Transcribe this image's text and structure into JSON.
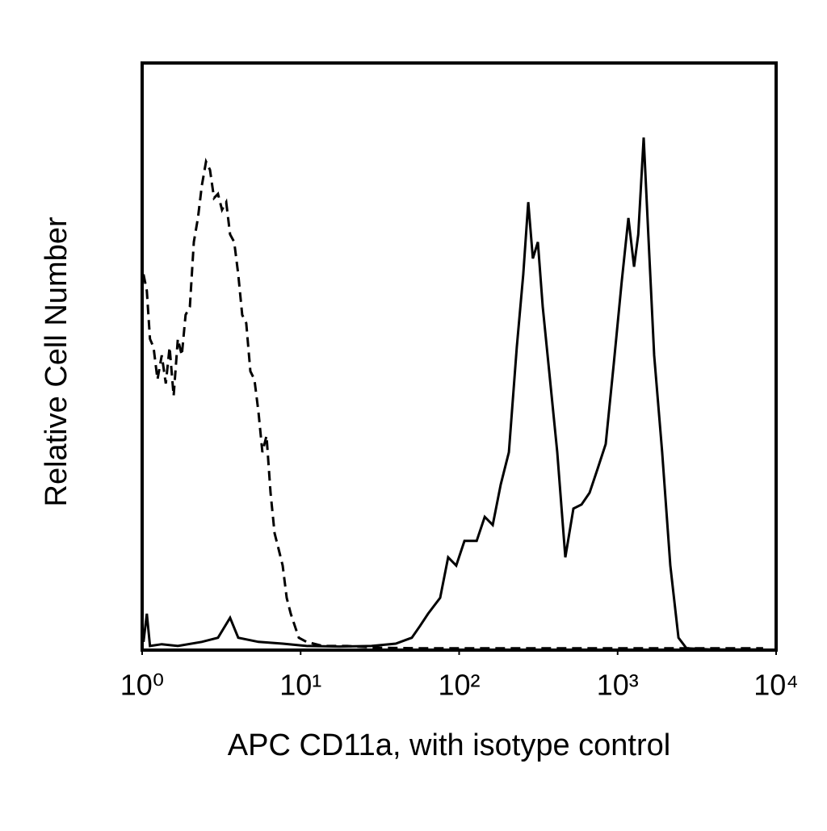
{
  "chart_data": {
    "type": "line",
    "x_label": "APC CD11a, with isotype control",
    "y_label": "Relative Cell Number",
    "xscale": "log",
    "xlim": [
      1,
      10000
    ],
    "ylim": [
      0,
      100
    ],
    "xticks": [
      {
        "value": 1,
        "label": "10⁰"
      },
      {
        "value": 10,
        "label": "10¹"
      },
      {
        "value": 100,
        "label": "10²"
      },
      {
        "value": 1000,
        "label": "10³"
      },
      {
        "value": 10000,
        "label": "10⁴"
      }
    ],
    "series": [
      {
        "color": "#000000",
        "line_style": "dashed",
        "x": [
          1.02,
          1.07,
          1.12,
          1.18,
          1.25,
          1.33,
          1.41,
          1.49,
          1.58,
          1.68,
          1.78,
          1.88,
          2.0,
          2.12,
          2.25,
          2.38,
          2.53,
          2.68,
          2.84,
          3.01,
          3.19,
          3.39,
          3.59,
          3.81,
          4.04,
          4.28,
          4.54,
          4.82,
          5.11,
          5.42,
          5.74,
          6.09,
          6.46,
          6.85,
          7.26,
          7.7,
          8.17,
          8.66,
          9.19,
          9.74,
          10.9,
          13.8,
          19.7,
          31.5,
          56.6,
          145,
          468,
          1510,
          4900,
          8280
        ],
        "values": [
          64.0,
          61.2,
          53.0,
          51.6,
          46.1,
          50.2,
          45.4,
          51.6,
          43.3,
          53.0,
          50.2,
          57.1,
          58.5,
          69.5,
          73.6,
          79.1,
          83.2,
          81.8,
          77.0,
          77.7,
          75.0,
          76.3,
          70.8,
          69.5,
          64.0,
          57.1,
          55.7,
          47.5,
          46.1,
          40.6,
          33.7,
          36.5,
          26.8,
          19.9,
          17.2,
          14.4,
          8.9,
          6.2,
          4.1,
          2.1,
          1.4,
          0.7,
          0.7,
          0.4,
          0.3,
          0.3,
          0.3,
          0.3,
          0.3,
          0.3
        ]
      },
      {
        "color": "#000000",
        "line_style": "solid",
        "x": [
          1.02,
          1.07,
          1.12,
          1.33,
          1.68,
          2.38,
          3.01,
          3.59,
          4.04,
          5.42,
          7.7,
          10.9,
          17.5,
          28.0,
          39.8,
          50.3,
          56.6,
          63.7,
          75.9,
          85.3,
          95.9,
          108,
          129,
          145,
          163,
          183,
          206,
          231,
          254,
          273,
          292,
          314,
          337,
          370,
          416,
          468,
          526,
          592,
          665,
          748,
          841,
          946,
          1060,
          1170,
          1270,
          1350,
          1460,
          1570,
          1700,
          1910,
          2150,
          2420,
          2720,
          3870,
          7820
        ],
        "values": [
          1.4,
          6.2,
          0.7,
          1.0,
          0.7,
          1.4,
          2.1,
          5.5,
          2.1,
          1.4,
          1.1,
          0.7,
          0.6,
          0.7,
          1.1,
          2.1,
          4.1,
          6.2,
          8.9,
          15.8,
          14.4,
          18.6,
          18.6,
          22.7,
          21.3,
          28.2,
          33.7,
          51.6,
          64.0,
          76.3,
          66.7,
          69.5,
          58.5,
          47.5,
          33.7,
          15.8,
          24.1,
          24.8,
          26.8,
          30.9,
          35.1,
          48.8,
          62.6,
          73.6,
          65.3,
          70.8,
          87.3,
          69.5,
          50.2,
          33.7,
          14.4,
          2.1,
          0.3,
          0.1,
          0.1
        ]
      }
    ]
  }
}
